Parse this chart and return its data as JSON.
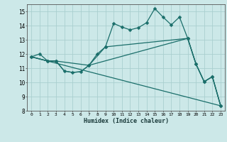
{
  "background_color": "#cce8e8",
  "grid_color": "#aacfcf",
  "line_color": "#1a6e6a",
  "xlabel": "Humidex (Indice chaleur)",
  "ylim": [
    8,
    15.5
  ],
  "xlim": [
    -0.5,
    23.5
  ],
  "yticks": [
    8,
    9,
    10,
    11,
    12,
    13,
    14,
    15
  ],
  "xticks": [
    0,
    1,
    2,
    3,
    4,
    5,
    6,
    7,
    8,
    9,
    10,
    11,
    12,
    13,
    14,
    15,
    16,
    17,
    18,
    19,
    20,
    21,
    22,
    23
  ],
  "curve1_x": [
    0,
    1,
    2,
    3,
    4,
    5,
    6,
    7,
    8,
    9,
    10,
    11,
    12,
    13,
    14,
    15,
    16,
    17,
    18,
    19,
    20,
    21,
    22,
    23
  ],
  "curve1_y": [
    11.8,
    12.0,
    11.5,
    11.5,
    10.8,
    10.7,
    10.75,
    11.2,
    12.0,
    12.5,
    14.15,
    13.9,
    13.7,
    13.85,
    14.2,
    15.2,
    14.6,
    14.05,
    14.6,
    13.1,
    11.3,
    10.05,
    10.4,
    8.35
  ],
  "curve2_x": [
    0,
    2,
    3,
    7,
    9,
    19,
    20,
    21,
    22,
    23
  ],
  "curve2_y": [
    11.8,
    11.5,
    11.5,
    11.2,
    12.5,
    13.1,
    11.3,
    10.05,
    10.4,
    8.35
  ],
  "curve3_x": [
    0,
    2,
    3,
    4,
    5,
    6,
    7,
    19,
    20,
    21,
    22,
    23
  ],
  "curve3_y": [
    11.8,
    11.5,
    11.5,
    10.8,
    10.7,
    10.75,
    11.2,
    13.1,
    11.3,
    10.05,
    10.4,
    8.35
  ],
  "curve4_x": [
    0,
    23
  ],
  "curve4_y": [
    11.8,
    8.35
  ]
}
